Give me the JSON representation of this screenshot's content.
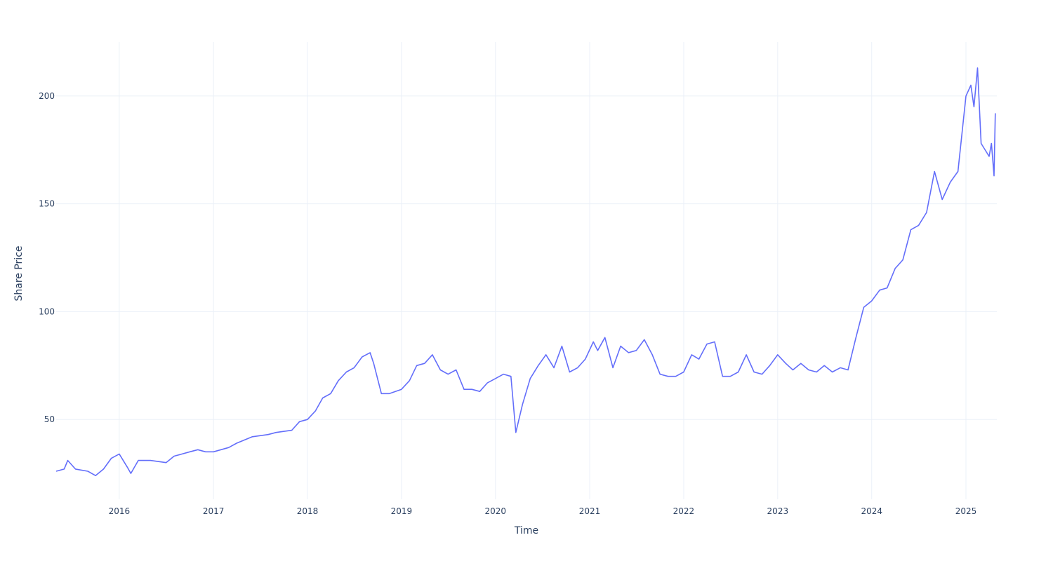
{
  "chart_data": {
    "type": "line",
    "title": "",
    "xlabel": "Time",
    "ylabel": "Share Price",
    "xlim": [
      "2015-05-01",
      "2025-05-01"
    ],
    "ylim": [
      13,
      225
    ],
    "xticks": [
      "2016",
      "2017",
      "2018",
      "2019",
      "2020",
      "2021",
      "2022",
      "2023",
      "2024",
      "2025"
    ],
    "yticks": [
      50,
      100,
      150,
      200
    ],
    "grid": true,
    "legend": "none",
    "line_color": "#636efa",
    "series": [
      {
        "x": [
          "2015-05-01",
          "2015-06-01",
          "2015-06-15",
          "2015-07-15",
          "2015-09-01",
          "2015-10-01",
          "2015-11-01",
          "2015-12-01",
          "2016-01-01",
          "2016-02-01",
          "2016-02-15",
          "2016-03-15",
          "2016-05-01",
          "2016-07-01",
          "2016-08-01",
          "2016-09-01",
          "2016-10-01",
          "2016-11-01",
          "2016-12-01",
          "2017-01-01",
          "2017-03-01",
          "2017-04-01",
          "2017-06-01",
          "2017-08-01",
          "2017-09-01",
          "2017-11-01",
          "2017-12-01",
          "2018-01-01",
          "2018-02-01",
          "2018-03-01",
          "2018-04-01",
          "2018-05-01",
          "2018-06-01",
          "2018-07-01",
          "2018-08-01",
          "2018-09-01",
          "2018-09-15",
          "2018-10-15",
          "2018-11-15",
          "2019-01-01",
          "2019-02-01",
          "2019-03-01",
          "2019-04-01",
          "2019-05-01",
          "2019-06-01",
          "2019-07-01",
          "2019-08-01",
          "2019-09-01",
          "2019-10-01",
          "2019-11-01",
          "2019-12-01",
          "2020-01-01",
          "2020-02-01",
          "2020-03-01",
          "2020-03-20",
          "2020-04-15",
          "2020-05-15",
          "2020-06-15",
          "2020-07-15",
          "2020-08-15",
          "2020-09-15",
          "2020-10-15",
          "2020-11-15",
          "2020-12-15",
          "2021-01-15",
          "2021-02-01",
          "2021-03-01",
          "2021-04-01",
          "2021-05-01",
          "2021-06-01",
          "2021-07-01",
          "2021-08-01",
          "2021-09-01",
          "2021-10-01",
          "2021-11-01",
          "2021-12-01",
          "2022-01-01",
          "2022-02-01",
          "2022-03-01",
          "2022-04-01",
          "2022-05-01",
          "2022-06-01",
          "2022-07-01",
          "2022-08-01",
          "2022-09-01",
          "2022-10-01",
          "2022-11-01",
          "2022-12-01",
          "2023-01-01",
          "2023-02-01",
          "2023-03-01",
          "2023-04-01",
          "2023-05-01",
          "2023-06-01",
          "2023-07-01",
          "2023-08-01",
          "2023-09-01",
          "2023-10-01",
          "2023-11-01",
          "2023-12-01",
          "2024-01-01",
          "2024-02-01",
          "2024-03-01",
          "2024-04-01",
          "2024-05-01",
          "2024-06-01",
          "2024-07-01",
          "2024-08-01",
          "2024-09-01",
          "2024-10-01",
          "2024-11-01",
          "2024-12-01",
          "2025-01-01",
          "2025-01-20",
          "2025-02-01",
          "2025-02-15",
          "2025-03-01",
          "2025-04-01",
          "2025-04-10",
          "2025-04-20",
          "2025-04-25"
        ],
        "y": [
          26,
          27,
          31,
          27,
          26,
          24,
          27,
          32,
          34,
          28,
          25,
          31,
          31,
          30,
          33,
          34,
          35,
          36,
          35,
          35,
          37,
          39,
          42,
          43,
          44,
          45,
          49,
          50,
          54,
          60,
          62,
          68,
          72,
          74,
          79,
          81,
          76,
          62,
          62,
          64,
          68,
          75,
          76,
          80,
          73,
          71,
          73,
          64,
          64,
          63,
          67,
          69,
          71,
          70,
          44,
          57,
          69,
          75,
          80,
          74,
          84,
          72,
          74,
          78,
          86,
          82,
          88,
          74,
          84,
          81,
          82,
          87,
          80,
          71,
          70,
          70,
          72,
          80,
          78,
          85,
          86,
          70,
          70,
          72,
          80,
          72,
          71,
          75,
          80,
          76,
          73,
          76,
          73,
          72,
          75,
          72,
          74,
          73,
          88,
          102,
          105,
          110,
          111,
          120,
          124,
          138,
          140,
          146,
          165,
          152,
          160,
          165,
          200,
          205,
          195,
          213,
          178,
          172,
          178,
          163,
          192
        ]
      }
    ]
  }
}
